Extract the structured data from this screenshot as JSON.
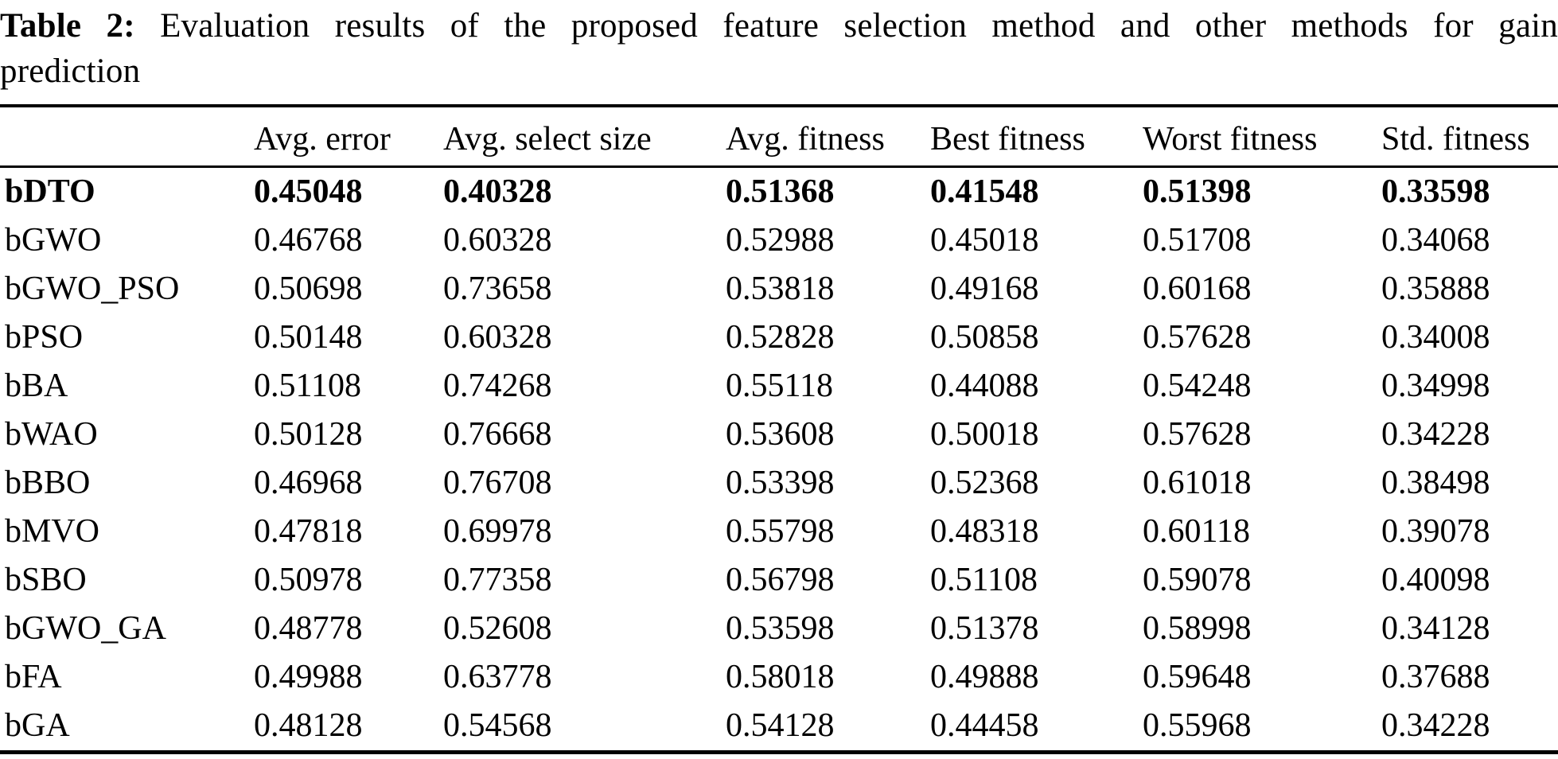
{
  "caption": {
    "label": "Table 2:",
    "text_line1": "Evaluation results of the proposed feature selection method and other methods for gain",
    "text_line2": "prediction"
  },
  "table": {
    "columns": [
      {
        "label": "",
        "key": "method"
      },
      {
        "label": "Avg. error",
        "key": "avg_error"
      },
      {
        "label": "Avg. select size",
        "key": "avg_select_size"
      },
      {
        "label": "Avg. fitness",
        "key": "avg_fitness"
      },
      {
        "label": "Best fitness",
        "key": "best_fitness"
      },
      {
        "label": "Worst fitness",
        "key": "worst_fitness"
      },
      {
        "label": "Std. fitness",
        "key": "std_fitness"
      }
    ],
    "rows": [
      {
        "method": "bDTO",
        "bold": true,
        "values": [
          "0.45048",
          "0.40328",
          "0.51368",
          "0.41548",
          "0.51398",
          "0.33598"
        ]
      },
      {
        "method": "bGWO",
        "bold": false,
        "values": [
          "0.46768",
          "0.60328",
          "0.52988",
          "0.45018",
          "0.51708",
          "0.34068"
        ]
      },
      {
        "method": "bGWO_PSO",
        "bold": false,
        "values": [
          "0.50698",
          "0.73658",
          "0.53818",
          "0.49168",
          "0.60168",
          "0.35888"
        ]
      },
      {
        "method": "bPSO",
        "bold": false,
        "values": [
          "0.50148",
          "0.60328",
          "0.52828",
          "0.50858",
          "0.57628",
          "0.34008"
        ]
      },
      {
        "method": "bBA",
        "bold": false,
        "values": [
          "0.51108",
          "0.74268",
          "0.55118",
          "0.44088",
          "0.54248",
          "0.34998"
        ]
      },
      {
        "method": "bWAO",
        "bold": false,
        "values": [
          "0.50128",
          "0.76668",
          "0.53608",
          "0.50018",
          "0.57628",
          "0.34228"
        ]
      },
      {
        "method": "bBBO",
        "bold": false,
        "values": [
          "0.46968",
          "0.76708",
          "0.53398",
          "0.52368",
          "0.61018",
          "0.38498"
        ]
      },
      {
        "method": "bMVO",
        "bold": false,
        "values": [
          "0.47818",
          "0.69978",
          "0.55798",
          "0.48318",
          "0.60118",
          "0.39078"
        ]
      },
      {
        "method": "bSBO",
        "bold": false,
        "values": [
          "0.50978",
          "0.77358",
          "0.56798",
          "0.51108",
          "0.59078",
          "0.40098"
        ]
      },
      {
        "method": "bGWO_GA",
        "bold": false,
        "values": [
          "0.48778",
          "0.52608",
          "0.53598",
          "0.51378",
          "0.58998",
          "0.34128"
        ]
      },
      {
        "method": "bFA",
        "bold": false,
        "values": [
          "0.49988",
          "0.63778",
          "0.58018",
          "0.49888",
          "0.59648",
          "0.37688"
        ]
      },
      {
        "method": "bGA",
        "bold": false,
        "values": [
          "0.48128",
          "0.54568",
          "0.54128",
          "0.44458",
          "0.55968",
          "0.34228"
        ]
      }
    ]
  }
}
